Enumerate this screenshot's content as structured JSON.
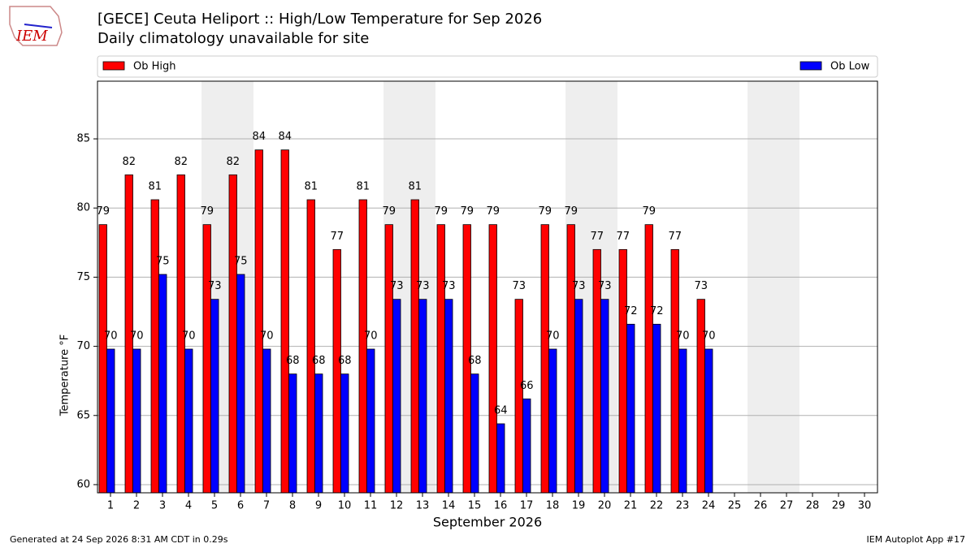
{
  "chart_data": {
    "type": "bar",
    "title": "[GECE] Ceuta Heliport :: High/Low Temperature for Sep 2026",
    "subtitle": "Daily climatology unavailable for site",
    "logo": "IEM",
    "y_label": "Temperature °F",
    "x_label": "September 2026",
    "footer_left": "Generated at 24 Sep 2026 8:31 AM CDT in 0.29s",
    "footer_right": "IEM Autoplot App #17",
    "categories": [
      "1",
      "2",
      "3",
      "4",
      "5",
      "6",
      "7",
      "8",
      "9",
      "10",
      "11",
      "12",
      "13",
      "14",
      "15",
      "16",
      "17",
      "18",
      "19",
      "20",
      "21",
      "22",
      "23",
      "24",
      "25",
      "26",
      "27",
      "28",
      "29",
      "30"
    ],
    "shaded_categories": [
      "5",
      "6",
      "12",
      "13",
      "19",
      "20",
      "26",
      "27"
    ],
    "series": [
      {
        "name": "Ob High",
        "color": "#ff0000",
        "values": [
          78.8,
          82.4,
          80.6,
          82.4,
          78.8,
          82.4,
          84.2,
          84.2,
          80.6,
          77.0,
          80.6,
          78.8,
          80.6,
          78.8,
          78.8,
          78.8,
          73.4,
          78.8,
          78.8,
          77.0,
          77.0,
          78.8,
          77.0,
          73.4,
          null,
          null,
          null,
          null,
          null,
          null
        ],
        "value_labels": [
          "79",
          "82",
          "81",
          "82",
          "79",
          "82",
          "84",
          "84",
          "81",
          "77",
          "81",
          "79",
          "81",
          "79",
          "79",
          "79",
          "73",
          "79",
          "79",
          "77",
          "77",
          "79",
          "77",
          "73",
          null,
          null,
          null,
          null,
          null,
          null
        ]
      },
      {
        "name": "Ob Low",
        "color": "#0000ff",
        "values": [
          69.8,
          69.8,
          75.2,
          69.8,
          73.4,
          75.2,
          69.8,
          68.0,
          68.0,
          68.0,
          69.8,
          73.4,
          73.4,
          73.4,
          68.0,
          64.4,
          66.2,
          69.8,
          73.4,
          73.4,
          71.6,
          71.6,
          69.8,
          69.8,
          null,
          null,
          null,
          null,
          null,
          null
        ],
        "value_labels": [
          "70",
          "70",
          "75",
          "70",
          "73",
          "75",
          "70",
          "68",
          "68",
          "68",
          "70",
          "73",
          "73",
          "73",
          "68",
          "64",
          "66",
          "70",
          "73",
          "73",
          "72",
          "72",
          "70",
          "70",
          null,
          null,
          null,
          null,
          null,
          null
        ]
      }
    ],
    "ylim": [
      59.41,
      89.17
    ],
    "yticks": [
      60,
      65,
      70,
      75,
      80,
      85
    ],
    "grid": true
  }
}
